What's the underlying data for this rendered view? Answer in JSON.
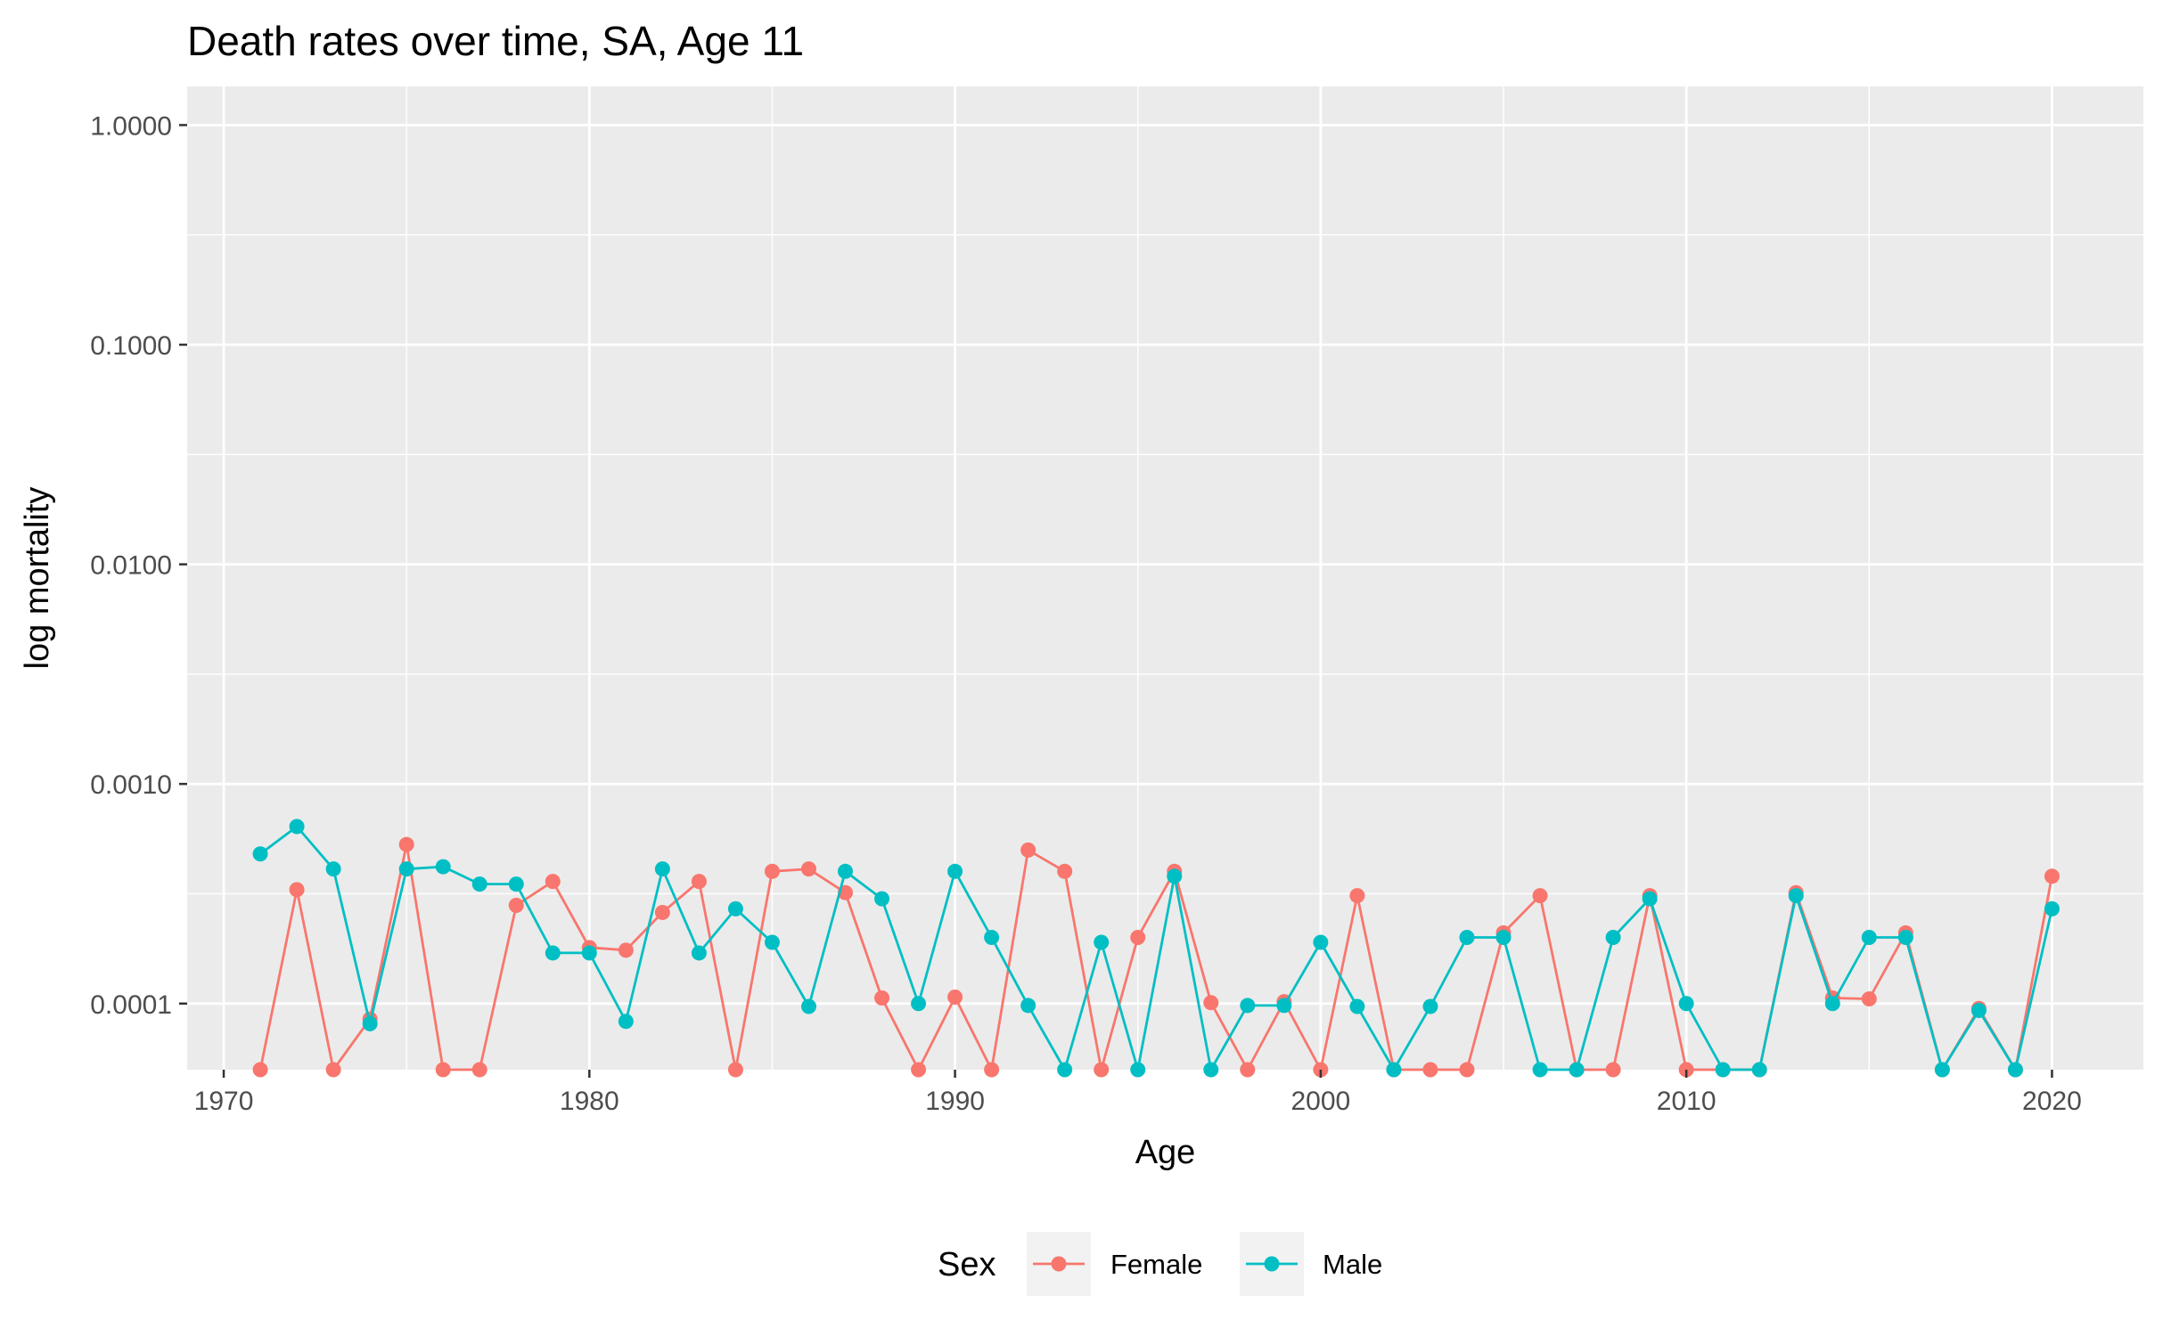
{
  "chart_data": {
    "type": "line",
    "title": "Death rates over time, SA, Age 11",
    "xlabel": "Age",
    "ylabel": "log mortality",
    "y_scale": "log10",
    "xlim": [
      1969,
      2022.5
    ],
    "ylim": [
      5e-05,
      1.5
    ],
    "x_ticks": [
      1970,
      1980,
      1990,
      2000,
      2010,
      2020
    ],
    "y_ticks": [
      0.0001,
      0.001,
      0.01,
      0.1,
      1.0
    ],
    "y_tick_labels": [
      "0.0001",
      "0.0010",
      "0.0100",
      "0.1000",
      "1.0000"
    ],
    "x_tick_labels": [
      "1970",
      "1980",
      "1990",
      "2000",
      "2010",
      "2020"
    ],
    "grid": true,
    "legend": {
      "title": "Sex",
      "position": "bottom"
    },
    "x": [
      1971,
      1972,
      1973,
      1974,
      1975,
      1976,
      1977,
      1978,
      1979,
      1980,
      1981,
      1982,
      1983,
      1984,
      1985,
      1986,
      1987,
      1988,
      1989,
      1990,
      1991,
      1992,
      1993,
      1994,
      1995,
      1996,
      1997,
      1998,
      1999,
      2000,
      2001,
      2002,
      2003,
      2004,
      2005,
      2006,
      2007,
      2008,
      2009,
      2010,
      2011,
      2012,
      2013,
      2014,
      2015,
      2016,
      2017,
      2018,
      2019,
      2020
    ],
    "series": [
      {
        "name": "Female",
        "color": "#F8766D",
        "values": [
          5e-05,
          0.00033,
          5e-05,
          8.5e-05,
          0.00053,
          5e-05,
          5e-05,
          0.00028,
          0.00036,
          0.00018,
          0.000175,
          0.00026,
          0.00036,
          5e-05,
          0.0004,
          0.00041,
          0.00032,
          0.000106,
          5e-05,
          0.000107,
          5e-05,
          0.0005,
          0.0004,
          5e-05,
          0.0002,
          0.0004,
          0.000101,
          5e-05,
          0.000102,
          5e-05,
          0.00031,
          5e-05,
          5e-05,
          5e-05,
          0.00021,
          0.00031,
          5e-05,
          5e-05,
          0.00031,
          5e-05,
          5e-05,
          5e-05,
          0.00032,
          0.000106,
          0.000105,
          0.00021,
          5e-05,
          9.5e-05,
          5e-05,
          0.00038
        ]
      },
      {
        "name": "Male",
        "color": "#00BFC4",
        "values": [
          0.00048,
          0.00064,
          0.00041,
          8.1e-05,
          0.00041,
          0.00042,
          0.00035,
          0.00035,
          0.00017,
          0.00017,
          8.3e-05,
          0.00041,
          0.00017,
          0.00027,
          0.00019,
          9.7e-05,
          0.0004,
          0.0003,
          0.0001,
          0.0004,
          0.0002,
          9.8e-05,
          5e-05,
          0.00019,
          5e-05,
          0.00038,
          5e-05,
          9.8e-05,
          9.8e-05,
          0.00019,
          9.7e-05,
          5e-05,
          9.7e-05,
          0.0002,
          0.0002,
          5e-05,
          5e-05,
          0.0002,
          0.0003,
          0.0001,
          5e-05,
          5e-05,
          0.00031,
          0.0001,
          0.0002,
          0.0002,
          5e-05,
          9.3e-05,
          5e-05,
          0.00027
        ]
      }
    ]
  }
}
